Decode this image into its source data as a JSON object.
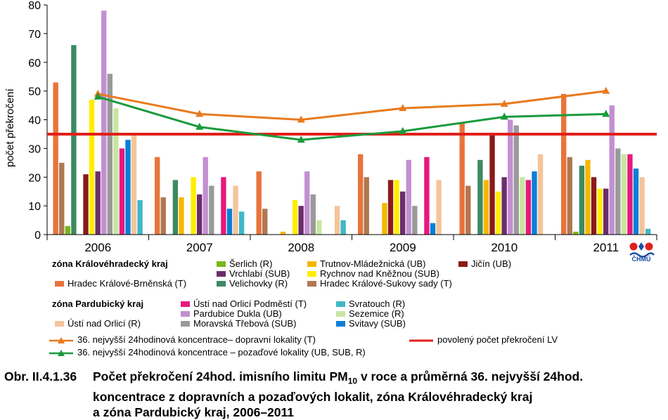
{
  "chart_data": {
    "type": "bar",
    "ylabel": "počet překročení",
    "ylim": [
      0,
      80
    ],
    "yticks": [
      0,
      10,
      20,
      30,
      40,
      50,
      60,
      70,
      80
    ],
    "categories": [
      "2006",
      "2007",
      "2008",
      "2009",
      "2010",
      "2011"
    ],
    "series": [
      {
        "name": "Hradec Králové-Brněnská (T)",
        "color": "#e8743b",
        "values": [
          53,
          27,
          22,
          28,
          39,
          49
        ]
      },
      {
        "name": "Hradec Králové-Sukovy sady (T)",
        "color": "#b07850",
        "values": [
          25,
          13,
          9,
          20,
          17,
          27
        ]
      },
      {
        "name": "Šerlich (R)",
        "color": "#7ab51d",
        "values": [
          3,
          0,
          0,
          0,
          0,
          1
        ]
      },
      {
        "name": "Velichovky (R)",
        "color": "#3c8a62",
        "values": [
          66,
          19,
          0,
          0,
          26,
          24
        ]
      },
      {
        "name": "Trutnov-Mládežnická (UB)",
        "color": "#f5b800",
        "values": [
          0,
          13,
          1,
          11,
          19,
          26
        ]
      },
      {
        "name": "Jičín (UB)",
        "color": "#8b1a1a",
        "values": [
          21,
          0,
          0,
          19,
          35,
          20
        ]
      },
      {
        "name": "Rychnov nad Kněžnou (SUB)",
        "color": "#ffee00",
        "values": [
          47,
          20,
          12,
          19,
          15,
          16
        ]
      },
      {
        "name": "Vrchlabí (SUB)",
        "color": "#6b2d6b",
        "values": [
          22,
          14,
          10,
          15,
          20,
          16
        ]
      },
      {
        "name": "Pardubice Dukla (UB)",
        "color": "#c38fd0",
        "values": [
          78,
          27,
          22,
          26,
          40,
          45
        ]
      },
      {
        "name": "Moravská Třebová (SUB)",
        "color": "#9a9a9a",
        "values": [
          56,
          17,
          14,
          10,
          38,
          30
        ]
      },
      {
        "name": "Sezemice (R)",
        "color": "#c8e6a0",
        "values": [
          44,
          0,
          5,
          0,
          20,
          28
        ]
      },
      {
        "name": "Ústí nad Orlicí Podměstí (T)",
        "color": "#e6197d",
        "values": [
          30,
          20,
          0,
          27,
          19,
          28
        ]
      },
      {
        "name": "Svitavy (SUB)",
        "color": "#0a7fd8",
        "values": [
          33,
          9,
          0,
          4,
          22,
          23
        ]
      },
      {
        "name": "Ústí nad Orlicí (R)",
        "color": "#f5c49a",
        "values": [
          35,
          17,
          10,
          19,
          28,
          20
        ]
      },
      {
        "name": "Svratouch (R)",
        "color": "#3fb8c8",
        "values": [
          12,
          8,
          5,
          0,
          0,
          2
        ]
      }
    ],
    "lines": [
      {
        "name": "36. nejvyšší 24hodinová koncentrace– dopravní lokality (T)",
        "color": "#e87a1e",
        "values": [
          49,
          42,
          40,
          44,
          45.5,
          50
        ]
      },
      {
        "name": "36. nejvyšší 24hodinová koncentrace – pozaďové lokality (UB, SUB, R)",
        "color": "#1a9a3c",
        "values": [
          48,
          37.5,
          33,
          36,
          41,
          42
        ]
      }
    ],
    "limit": {
      "name": "povolený počet překročení LV",
      "value": 35,
      "color": "#e0201b"
    }
  },
  "legend": {
    "zone_kh": "zóna Královéhradecký kraj",
    "zone_pa": "zóna Pardubický kraj"
  },
  "logo_text": "ČHMÚ",
  "caption": {
    "number": "Obr. II.4.1.36",
    "line1_pre": "Počet překročení 24hod. imisního limitu PM",
    "line1_sub": "10",
    "line1_post": " v roce a průměrná 36. nejvyšší 24hod.",
    "line2": "koncentrace z dopravních a pozaďových lokalit, zóna Královéhradecký kraj",
    "line3": "a zóna Pardubický kraj, 2006–2011"
  }
}
